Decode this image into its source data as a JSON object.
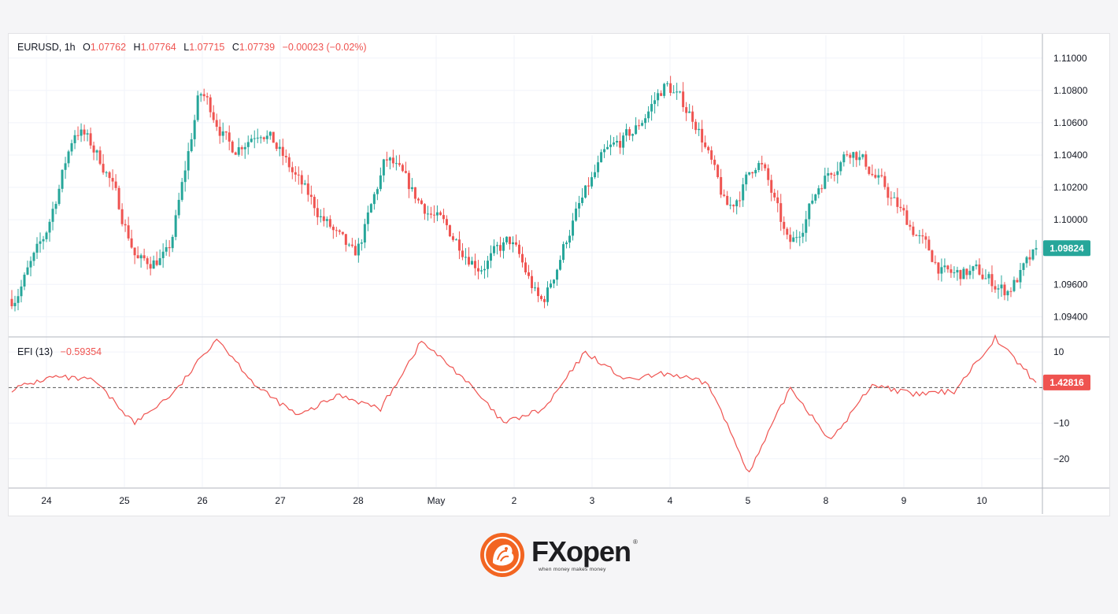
{
  "header": {
    "symbol": "EURUSD, 1h",
    "o_label": "O",
    "o_value": "1.07762",
    "h_label": "H",
    "h_value": "1.07764",
    "l_label": "L",
    "l_value": "1.07715",
    "c_label": "C",
    "c_value": "1.07739",
    "change": "−0.00023 (−0.02%)"
  },
  "indicator": {
    "label": "EFI (13)",
    "value": "−0.59354"
  },
  "brand": {
    "name": "FXopen",
    "tagline": "when money makes money",
    "registered": "®"
  },
  "colors": {
    "up": "#26a69a",
    "down": "#ef5350",
    "grid": "#f0f3fa",
    "axis_text": "#131722",
    "efi_line": "#ef5350"
  },
  "chart_data": [
    {
      "type": "candlestick",
      "title": "EURUSD, 1h",
      "price_axis_ticks": [
        "1.11000",
        "1.10800",
        "1.10600",
        "1.10400",
        "1.10200",
        "1.10000",
        "1.09600",
        "1.09400"
      ],
      "ylim": [
        1.0928,
        1.1114
      ],
      "current_price_label": "1.09824",
      "x_tick_labels": [
        "24",
        "25",
        "26",
        "27",
        "28",
        "May",
        "2",
        "3",
        "4",
        "5",
        "8",
        "9",
        "10"
      ],
      "approx_close_path": [
        {
          "x": "24",
          "close": 1.0951
        },
        {
          "x": "24 mid",
          "close": 1.099
        },
        {
          "x": "25",
          "close": 1.106
        },
        {
          "x": "25 late",
          "close": 1.103
        },
        {
          "x": "26",
          "close": 1.0972
        },
        {
          "x": "26 mid",
          "close": 1.0978
        },
        {
          "x": "26 late",
          "close": 1.1083
        },
        {
          "x": "27",
          "close": 1.1042
        },
        {
          "x": "27 mid",
          "close": 1.1058
        },
        {
          "x": "28",
          "close": 1.1028
        },
        {
          "x": "28 mid",
          "close": 1.0999
        },
        {
          "x": "28 late",
          "close": 1.0975
        },
        {
          "x": "May",
          "close": 1.104
        },
        {
          "x": "May mid",
          "close": 1.1012
        },
        {
          "x": "May late",
          "close": 1.0993
        },
        {
          "x": "2",
          "close": 1.097
        },
        {
          "x": "2 mid",
          "close": 1.0988
        },
        {
          "x": "2 late",
          "close": 1.0945
        },
        {
          "x": "3",
          "close": 1.1
        },
        {
          "x": "3 mid",
          "close": 1.104
        },
        {
          "x": "3 late",
          "close": 1.1055
        },
        {
          "x": "4",
          "close": 1.1085
        },
        {
          "x": "4 mid",
          "close": 1.106
        },
        {
          "x": "4 late",
          "close": 1.1003
        },
        {
          "x": "5",
          "close": 1.104
        },
        {
          "x": "5 mid",
          "close": 1.098
        },
        {
          "x": "8",
          "close": 1.1025
        },
        {
          "x": "8 mid",
          "close": 1.1045
        },
        {
          "x": "8 late",
          "close": 1.102
        },
        {
          "x": "9",
          "close": 1.0993
        },
        {
          "x": "9 mid",
          "close": 1.0965
        },
        {
          "x": "10",
          "close": 1.0968
        },
        {
          "x": "10 mid",
          "close": 1.0955
        },
        {
          "x": "10 late",
          "close": 1.0982
        }
      ]
    },
    {
      "type": "line",
      "title": "EFI (13)",
      "y_axis_ticks": [
        "10",
        "−10",
        "−20"
      ],
      "ylim": [
        -28,
        14
      ],
      "current_value_label": "1.42816",
      "zero_line": "dashed",
      "approx_points": [
        {
          "x": "24",
          "y": -0.5
        },
        {
          "x": "24 mid",
          "y": 3
        },
        {
          "x": "25",
          "y": 2
        },
        {
          "x": "25 late",
          "y": -10
        },
        {
          "x": "26",
          "y": -1
        },
        {
          "x": "26 late",
          "y": 14
        },
        {
          "x": "27",
          "y": 0
        },
        {
          "x": "27 late",
          "y": -8
        },
        {
          "x": "28",
          "y": -2
        },
        {
          "x": "28 late",
          "y": -6
        },
        {
          "x": "May",
          "y": 13
        },
        {
          "x": "May late",
          "y": 3
        },
        {
          "x": "2",
          "y": -10
        },
        {
          "x": "2 late",
          "y": -6
        },
        {
          "x": "3",
          "y": 10
        },
        {
          "x": "3 late",
          "y": 2
        },
        {
          "x": "4",
          "y": 4
        },
        {
          "x": "4 late",
          "y": 1
        },
        {
          "x": "4 spike",
          "y": -24
        },
        {
          "x": "5",
          "y": 0
        },
        {
          "x": "5 dip",
          "y": -15
        },
        {
          "x": "8",
          "y": 1
        },
        {
          "x": "9",
          "y": -2
        },
        {
          "x": "10",
          "y": -1
        },
        {
          "x": "10 spike",
          "y": 14
        },
        {
          "x": "10 end",
          "y": 1.4
        }
      ]
    }
  ]
}
